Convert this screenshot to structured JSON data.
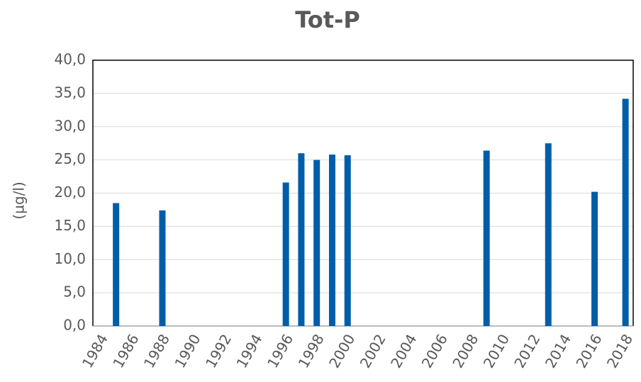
{
  "chart_data": {
    "type": "bar",
    "title": "Tot-P",
    "y_label": "(µg/l)",
    "categories": [
      "1984",
      null,
      "1986",
      null,
      "1988",
      null,
      "1990",
      null,
      "1992",
      null,
      "1994",
      null,
      "1996",
      null,
      "1998",
      null,
      "2000",
      null,
      "2002",
      null,
      "2004",
      null,
      "2006",
      null,
      "2008",
      null,
      "2010",
      null,
      "2012",
      null,
      "2014",
      null,
      "2016",
      null,
      "2018"
    ],
    "values": [
      null,
      18.5,
      null,
      null,
      17.4,
      null,
      null,
      null,
      null,
      null,
      null,
      null,
      21.6,
      26.0,
      25.0,
      25.8,
      25.7,
      null,
      null,
      null,
      null,
      null,
      null,
      null,
      null,
      26.4,
      null,
      null,
      null,
      27.5,
      null,
      null,
      20.2,
      null,
      34.2
    ],
    "color": "#005ea8",
    "ylim": [
      0,
      40
    ],
    "yticks": [
      {
        "value": 0,
        "label": "0,0"
      },
      {
        "value": 5,
        "label": "5,0"
      },
      {
        "value": 10,
        "label": "10,0"
      },
      {
        "value": 15,
        "label": "15,0"
      },
      {
        "value": 20,
        "label": "20,0"
      },
      {
        "value": 25,
        "label": "25,0"
      },
      {
        "value": 30,
        "label": "30,0"
      },
      {
        "value": 35,
        "label": "35,0"
      },
      {
        "value": 40,
        "label": "40,0"
      }
    ],
    "grid": true
  }
}
